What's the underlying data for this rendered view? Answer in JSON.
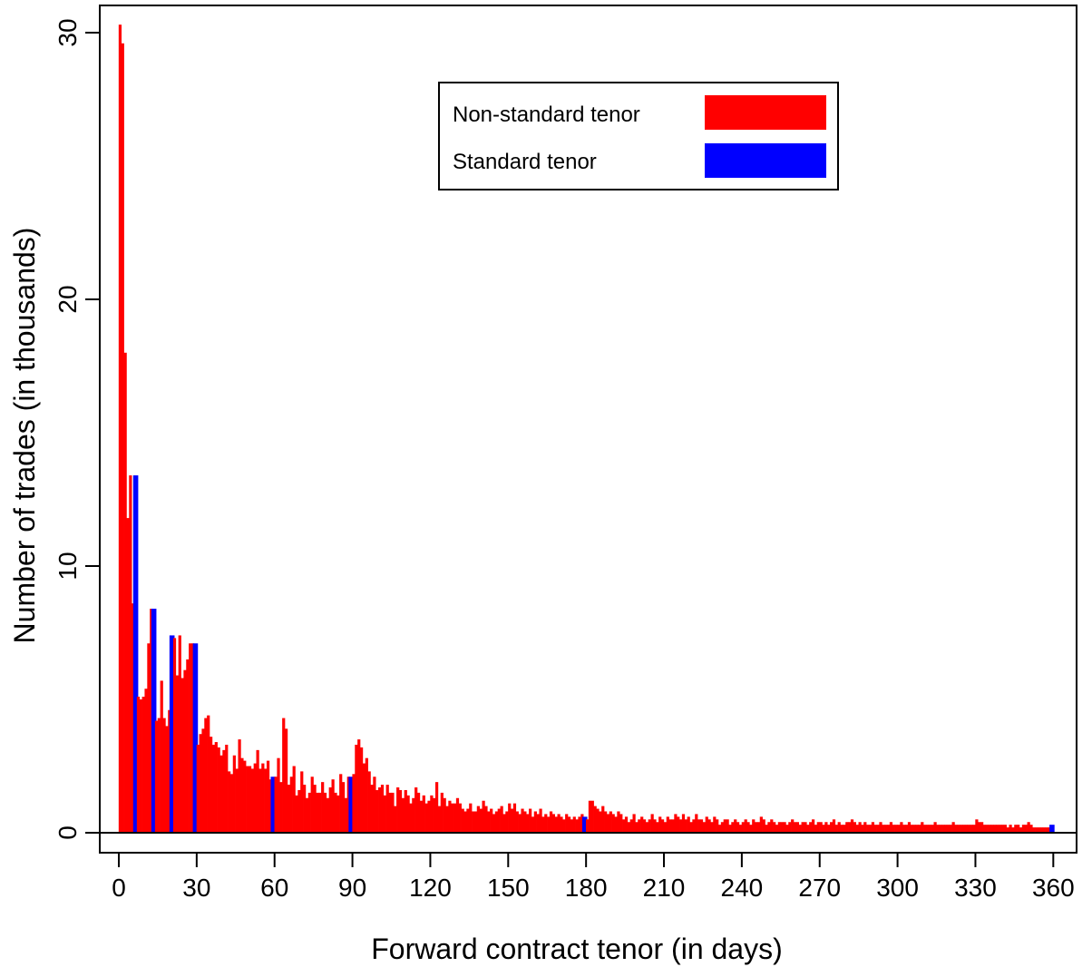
{
  "chart_data": {
    "type": "bar",
    "title": "",
    "xlabel": "Forward contract tenor (in days)",
    "ylabel": "Number of trades (in thousands)",
    "xlim": [
      0,
      360
    ],
    "ylim": [
      0,
      30
    ],
    "x_ticks": [
      0,
      30,
      60,
      90,
      120,
      150,
      180,
      210,
      240,
      270,
      300,
      330,
      360
    ],
    "y_ticks": [
      0,
      10,
      20,
      30
    ],
    "grid": false,
    "legend_position": "top-right",
    "series": [
      {
        "name": "Non-standard tenor",
        "color": "#ff0000"
      },
      {
        "name": "Standard tenor",
        "color": "#0000ff"
      }
    ],
    "standard_tenors": [
      7,
      14,
      21,
      30,
      60,
      90,
      180,
      360
    ],
    "values": [
      30.3,
      29.6,
      18.0,
      11.8,
      13.4,
      8.6,
      6.7,
      5.1,
      5.0,
      5.1,
      5.4,
      7.1,
      8.4,
      5.4,
      4.2,
      4.3,
      5.7,
      4.3,
      4.0,
      4.6,
      7.4,
      7.3,
      5.9,
      7.4,
      5.8,
      6.1,
      6.5,
      7.1,
      7.1,
      4.4,
      3.3,
      3.7,
      3.9,
      4.3,
      4.4,
      3.6,
      3.3,
      3.4,
      3.2,
      2.9,
      3.1,
      3.3,
      2.3,
      2.2,
      2.9,
      2.4,
      3.5,
      2.8,
      2.7,
      2.5,
      2.5,
      2.4,
      2.6,
      3.1,
      2.4,
      2.6,
      2.4,
      2.7,
      2.0,
      2.1,
      2.1,
      2.8,
      1.9,
      4.3,
      3.9,
      1.8,
      2.1,
      2.5,
      1.4,
      1.6,
      2.3,
      1.8,
      1.3,
      1.5,
      2.1,
      1.8,
      1.5,
      1.5,
      1.9,
      1.5,
      1.3,
      1.7,
      2.0,
      1.5,
      1.4,
      2.2,
      1.9,
      1.3,
      2.1,
      1.5,
      2.2,
      3.3,
      3.5,
      3.2,
      2.6,
      2.8,
      2.3,
      1.8,
      2.1,
      1.6,
      1.7,
      1.8,
      1.4,
      1.8,
      1.5,
      1.5,
      1.0,
      1.7,
      1.6,
      1.3,
      1.6,
      1.4,
      1.1,
      1.3,
      1.7,
      1.5,
      1.2,
      1.4,
      1.1,
      1.2,
      1.4,
      1.3,
      1.9,
      1.0,
      1.5,
      1.3,
      1.0,
      1.2,
      1.1,
      1.1,
      1.3,
      1.1,
      0.9,
      0.8,
      0.9,
      1.1,
      0.8,
      0.8,
      1.0,
      0.9,
      1.2,
      1.0,
      0.8,
      0.9,
      0.7,
      0.8,
      0.9,
      1.0,
      0.7,
      0.8,
      1.1,
      0.9,
      1.1,
      0.8,
      0.7,
      0.9,
      0.8,
      0.7,
      0.9,
      0.6,
      0.8,
      0.7,
      0.9,
      0.6,
      0.7,
      0.6,
      0.8,
      0.7,
      0.6,
      0.7,
      0.6,
      0.5,
      0.7,
      0.6,
      0.5,
      0.6,
      0.5,
      0.6,
      0.7,
      0.5,
      0.5,
      1.2,
      1.2,
      1.0,
      0.9,
      0.8,
      1.0,
      0.8,
      0.7,
      0.8,
      0.7,
      0.6,
      0.8,
      0.7,
      0.5,
      0.6,
      0.4,
      0.5,
      0.7,
      0.4,
      0.5,
      0.6,
      0.5,
      0.4,
      0.5,
      0.7,
      0.5,
      0.4,
      0.6,
      0.5,
      0.4,
      0.6,
      0.5,
      0.5,
      0.7,
      0.6,
      0.5,
      0.7,
      0.5,
      0.6,
      0.4,
      0.5,
      0.7,
      0.5,
      0.5,
      0.4,
      0.6,
      0.5,
      0.4,
      0.6,
      0.5,
      0.3,
      0.4,
      0.5,
      0.5,
      0.3,
      0.4,
      0.5,
      0.4,
      0.3,
      0.4,
      0.5,
      0.4,
      0.3,
      0.5,
      0.4,
      0.4,
      0.6,
      0.5,
      0.3,
      0.4,
      0.5,
      0.4,
      0.3,
      0.4,
      0.4,
      0.4,
      0.3,
      0.4,
      0.5,
      0.4,
      0.4,
      0.3,
      0.4,
      0.4,
      0.3,
      0.4,
      0.5,
      0.3,
      0.4,
      0.4,
      0.3,
      0.4,
      0.3,
      0.4,
      0.5,
      0.3,
      0.4,
      0.3,
      0.3,
      0.4,
      0.4,
      0.5,
      0.4,
      0.3,
      0.4,
      0.3,
      0.4,
      0.3,
      0.3,
      0.4,
      0.3,
      0.3,
      0.4,
      0.3,
      0.3,
      0.3,
      0.4,
      0.3,
      0.3,
      0.3,
      0.4,
      0.3,
      0.3,
      0.4,
      0.3,
      0.3,
      0.3,
      0.3,
      0.4,
      0.3,
      0.3,
      0.3,
      0.3,
      0.4,
      0.3,
      0.3,
      0.3,
      0.3,
      0.3,
      0.3,
      0.4,
      0.3,
      0.3,
      0.3,
      0.3,
      0.3,
      0.3,
      0.3,
      0.3,
      0.5,
      0.4,
      0.4,
      0.3,
      0.3,
      0.3,
      0.3,
      0.3,
      0.3,
      0.3,
      0.3,
      0.3,
      0.2,
      0.3,
      0.2,
      0.3,
      0.3,
      0.2,
      0.3,
      0.3,
      0.4,
      0.3,
      0.2,
      0.2,
      0.2,
      0.2,
      0.2,
      0.2,
      0.2,
      0.2
    ],
    "standard_values": {
      "7": 13.4,
      "14": 8.4,
      "21": 7.4,
      "30": 7.1,
      "60": 2.1,
      "90": 2.1,
      "180": 0.6,
      "360": 0.3
    }
  }
}
